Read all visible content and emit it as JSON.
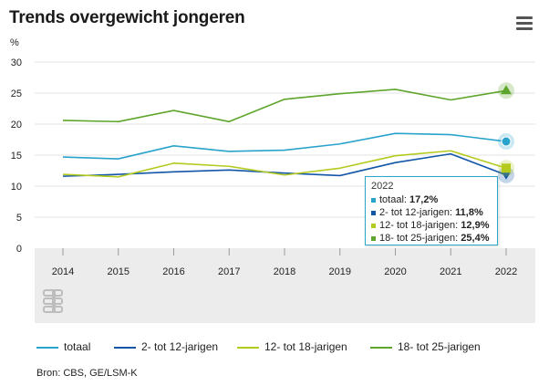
{
  "title": "Trends overgewicht jongeren",
  "menu_icon": "hamburger-menu-icon",
  "source": "Bron: CBS, GE/LSM-K",
  "chart_data": {
    "type": "line",
    "title": "Trends overgewicht jongeren",
    "ylabel": "%",
    "xlabel": "",
    "ylim": [
      0,
      30
    ],
    "yticks": [
      0,
      5,
      10,
      15,
      20,
      25,
      30
    ],
    "grid": true,
    "legend_position": "bottom",
    "x": [
      "2014",
      "2015",
      "2016",
      "2017",
      "2018",
      "2019",
      "2020",
      "2021",
      "2022"
    ],
    "series": [
      {
        "name": "totaal",
        "color": "#29a3cc",
        "values": [
          14.7,
          14.4,
          16.5,
          15.6,
          15.8,
          16.8,
          18.5,
          18.3,
          17.2
        ]
      },
      {
        "name": "2- tot 12-jarigen",
        "color": "#1256a8",
        "values": [
          11.6,
          11.9,
          12.3,
          12.6,
          12.1,
          11.7,
          13.8,
          15.2,
          11.8
        ]
      },
      {
        "name": "12- tot 18-jarigen",
        "color": "#b4ca1f",
        "values": [
          11.9,
          11.5,
          13.7,
          13.2,
          11.8,
          12.9,
          14.9,
          15.7,
          12.9
        ]
      },
      {
        "name": "18- tot 25-jarigen",
        "color": "#5ea52b",
        "values": [
          20.6,
          20.4,
          22.2,
          20.4,
          24.0,
          24.9,
          25.6,
          23.9,
          25.4
        ]
      }
    ],
    "tooltip": {
      "year": "2022",
      "rows": [
        {
          "label": "totaal:",
          "value": "17,2%"
        },
        {
          "label": "2- tot 12-jarigen:",
          "value": "11,8%"
        },
        {
          "label": "12- tot 18-jarigen:",
          "value": "12,9%"
        },
        {
          "label": "18- tot 25-jarigen:",
          "value": "25,4%"
        }
      ]
    },
    "watermark": "cbs-logo"
  }
}
